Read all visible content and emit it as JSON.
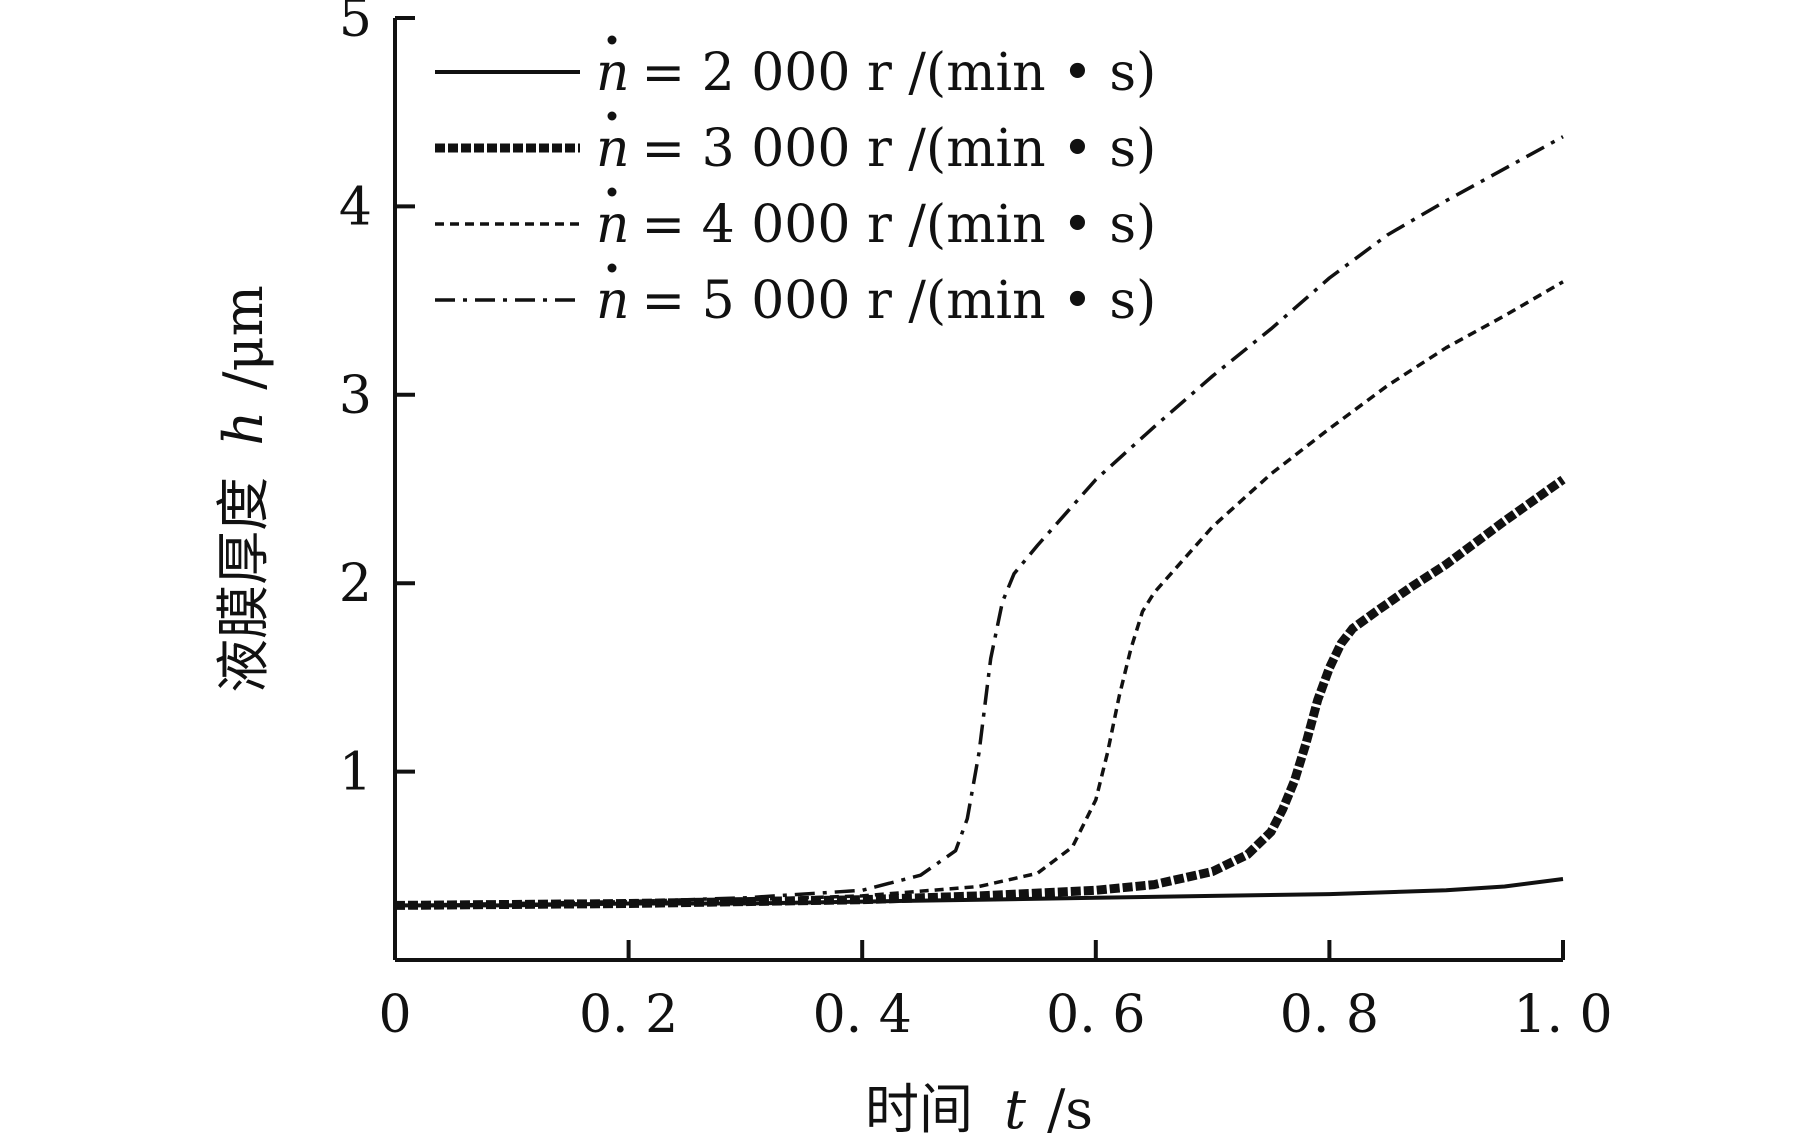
{
  "chart_data": {
    "type": "line",
    "xlabel": "时间",
    "xlabel_var": "t",
    "xlabel_unit": "/s",
    "ylabel": "液膜厚度",
    "ylabel_var": "h",
    "ylabel_unit": "/μm",
    "xlim": [
      0,
      1.0
    ],
    "ylim": [
      0,
      5
    ],
    "x_ticks": [
      {
        "value": 0,
        "label": "0"
      },
      {
        "value": 0.2,
        "label": "0. 2"
      },
      {
        "value": 0.4,
        "label": "0. 4"
      },
      {
        "value": 0.6,
        "label": "0. 6"
      },
      {
        "value": 0.8,
        "label": "0. 8"
      },
      {
        "value": 1.0,
        "label": "1. 0"
      }
    ],
    "y_ticks": [
      {
        "value": 1,
        "label": "1"
      },
      {
        "value": 2,
        "label": "2"
      },
      {
        "value": 3,
        "label": "3"
      },
      {
        "value": 4,
        "label": "4"
      },
      {
        "value": 5,
        "label": "5"
      }
    ],
    "grid": false,
    "legend_position": "top-left",
    "series": [
      {
        "name": "ṅ = 2 000 r /(min • s)",
        "legend_var": "n",
        "legend_rest": "= 2 000 r /(min • s)",
        "style": "solid",
        "x": [
          0,
          0.1,
          0.2,
          0.3,
          0.4,
          0.5,
          0.6,
          0.7,
          0.8,
          0.9,
          0.95,
          1.0
        ],
        "y": [
          0.29,
          0.29,
          0.3,
          0.3,
          0.31,
          0.32,
          0.33,
          0.34,
          0.35,
          0.37,
          0.39,
          0.43
        ]
      },
      {
        "name": "ṅ = 3 000 r /(min • s)",
        "legend_var": "n",
        "legend_rest": "= 3 000 r /(min • s)",
        "style": "thick-dashed",
        "x": [
          0,
          0.2,
          0.4,
          0.5,
          0.6,
          0.65,
          0.7,
          0.73,
          0.75,
          0.76,
          0.77,
          0.78,
          0.79,
          0.8,
          0.81,
          0.82,
          0.84,
          0.87,
          0.9,
          0.95,
          1.0
        ],
        "y": [
          0.29,
          0.3,
          0.32,
          0.34,
          0.37,
          0.4,
          0.47,
          0.56,
          0.68,
          0.8,
          0.95,
          1.15,
          1.38,
          1.55,
          1.68,
          1.76,
          1.85,
          1.98,
          2.1,
          2.33,
          2.55
        ]
      },
      {
        "name": "ṅ = 4 000 r /(min • s)",
        "legend_var": "n",
        "legend_rest": "= 4 000 r /(min • s)",
        "style": "dashed",
        "x": [
          0,
          0.2,
          0.4,
          0.5,
          0.55,
          0.58,
          0.6,
          0.61,
          0.62,
          0.63,
          0.64,
          0.65,
          0.7,
          0.75,
          0.8,
          0.85,
          0.9,
          0.95,
          1.0
        ],
        "y": [
          0.29,
          0.3,
          0.34,
          0.39,
          0.46,
          0.6,
          0.85,
          1.1,
          1.4,
          1.65,
          1.85,
          1.95,
          2.3,
          2.58,
          2.82,
          3.05,
          3.25,
          3.42,
          3.6
        ]
      },
      {
        "name": "ṅ = 5 000 r /(min • s)",
        "legend_var": "n",
        "legend_rest": "= 5 000 r /(min • s)",
        "style": "dash-dot",
        "x": [
          0,
          0.2,
          0.3,
          0.4,
          0.45,
          0.48,
          0.49,
          0.5,
          0.51,
          0.52,
          0.53,
          0.55,
          0.6,
          0.65,
          0.7,
          0.75,
          0.8,
          0.85,
          0.9,
          0.95,
          1.0
        ],
        "y": [
          0.29,
          0.31,
          0.33,
          0.37,
          0.45,
          0.58,
          0.75,
          1.1,
          1.6,
          1.9,
          2.05,
          2.2,
          2.55,
          2.83,
          3.1,
          3.35,
          3.62,
          3.85,
          4.03,
          4.2,
          4.37
        ]
      }
    ]
  }
}
